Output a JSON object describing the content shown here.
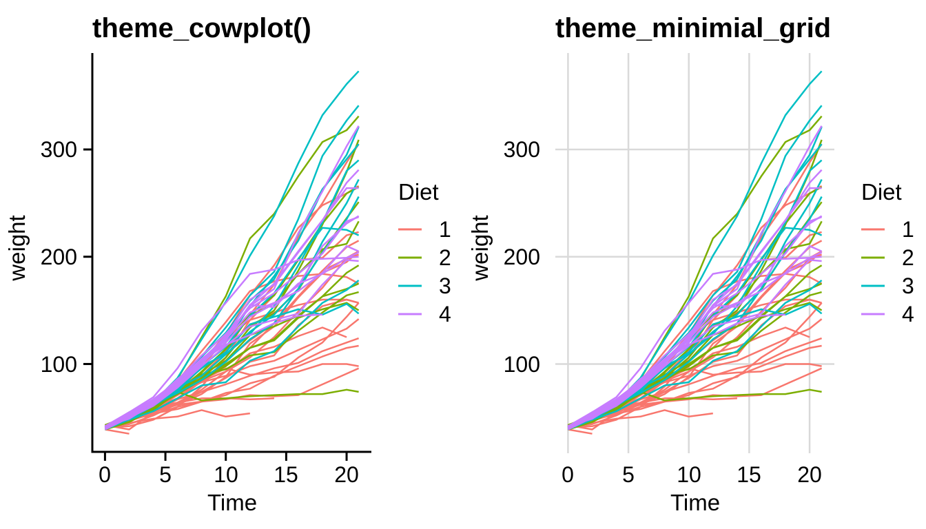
{
  "figure": {
    "background": "#ffffff"
  },
  "chart_data": {
    "type": "line",
    "x_label": "Time",
    "y_label": "weight",
    "x_ticks": [
      0,
      5,
      10,
      15,
      20
    ],
    "y_ticks": [
      100,
      200,
      300
    ],
    "x_values": [
      0,
      2,
      4,
      6,
      8,
      10,
      12,
      14,
      16,
      18,
      20,
      21
    ],
    "x_range": [
      0,
      21
    ],
    "y_range": [
      35,
      373
    ],
    "legend_title": "Diet",
    "legend_position": "right",
    "panels": [
      {
        "title": "theme_cowplot()",
        "grid": false,
        "axis_lines": true,
        "axis_ticks": true
      },
      {
        "title": "theme_minimial_grid",
        "grid": true,
        "axis_lines": false,
        "axis_ticks": false
      }
    ],
    "colors": {
      "axis": "#000000",
      "grid": "#d9d9d9",
      "text": "#000000",
      "background": "#ffffff"
    },
    "line_width": 2.5,
    "series": [
      {
        "name": "1",
        "color": "#F8766D",
        "lines": [
          [
            42,
            51,
            59,
            64,
            76,
            93,
            106,
            125,
            149,
            171,
            199,
            205
          ],
          [
            40,
            49,
            58,
            72,
            84,
            103,
            122,
            138,
            162,
            187,
            209,
            215
          ],
          [
            43,
            39,
            55,
            67,
            84,
            99,
            115,
            138,
            163,
            187,
            198,
            202
          ],
          [
            42,
            49,
            56,
            67,
            74,
            87,
            102,
            108,
            136,
            154,
            160,
            157
          ],
          [
            41,
            42,
            48,
            60,
            79,
            106,
            141,
            164,
            197,
            199,
            220,
            223
          ],
          [
            41,
            49,
            59,
            74,
            97,
            124,
            141,
            148,
            155,
            160,
            160,
            157
          ],
          [
            41,
            49,
            57,
            71,
            89,
            112,
            146,
            174,
            218,
            250,
            288,
            305
          ],
          [
            42,
            50,
            61,
            71,
            84,
            93,
            110,
            116,
            126,
            134,
            125
          ],
          [
            42,
            51,
            59,
            68,
            85,
            96,
            90,
            92,
            93,
            100,
            100,
            98
          ],
          [
            41,
            44,
            52,
            63,
            74,
            81,
            89,
            96,
            101,
            112,
            120,
            124
          ],
          [
            43,
            51,
            63,
            84,
            112,
            139,
            168,
            177,
            182,
            184,
            181,
            175
          ],
          [
            41,
            49,
            56,
            62,
            72,
            88,
            119,
            135,
            162,
            185,
            195,
            205
          ],
          [
            41,
            48,
            53,
            60,
            65,
            67,
            71,
            70,
            71,
            81,
            91,
            96
          ],
          [
            41,
            49,
            62,
            79,
            101,
            128,
            164,
            192,
            227,
            248,
            259,
            266
          ],
          [
            41,
            49,
            56,
            64,
            68,
            68,
            67,
            68
          ],
          [
            41,
            45,
            49,
            51,
            57,
            51,
            54
          ],
          [
            42,
            51,
            61,
            72,
            83,
            89,
            98,
            103,
            113,
            123,
            133,
            142
          ],
          [
            39,
            35
          ],
          [
            43,
            48,
            55,
            62,
            65,
            71,
            82,
            88,
            106,
            120,
            144,
            157
          ],
          [
            41,
            47,
            54,
            58,
            65,
            73,
            77,
            89,
            98,
            107,
            115,
            117
          ]
        ]
      },
      {
        "name": "2",
        "color": "#7CAE00",
        "lines": [
          [
            40,
            50,
            62,
            86,
            125,
            163,
            217,
            240,
            275,
            307,
            318,
            331
          ],
          [
            41,
            55,
            64,
            77,
            90,
            95,
            108,
            111,
            131,
            148,
            164,
            167
          ],
          [
            43,
            52,
            61,
            73,
            90,
            103,
            127,
            135,
            145,
            163,
            170,
            175
          ],
          [
            42,
            52,
            58,
            74,
            66,
            68,
            70,
            71,
            72,
            72,
            76,
            74
          ],
          [
            40,
            49,
            62,
            78,
            102,
            124,
            146,
            164,
            197,
            231,
            259,
            265
          ],
          [
            42,
            48,
            57,
            74,
            93,
            114,
            136,
            147,
            169,
            205,
            236,
            251
          ],
          [
            39,
            46,
            58,
            73,
            87,
            100,
            115,
            123,
            144,
            163,
            185,
            192
          ],
          [
            39,
            46,
            58,
            73,
            92,
            114,
            145,
            156,
            184,
            207,
            212,
            233
          ],
          [
            39,
            48,
            59,
            74,
            87,
            106,
            134,
            150,
            187,
            230,
            279,
            309
          ],
          [
            42,
            48,
            59,
            72,
            85,
            98,
            115,
            122,
            143,
            151,
            157,
            150
          ]
        ]
      },
      {
        "name": "3",
        "color": "#00BFC4",
        "lines": [
          [
            42,
            53,
            62,
            73,
            85,
            102,
            123,
            138,
            170,
            204,
            235,
            256
          ],
          [
            41,
            49,
            65,
            82,
            107,
            129,
            159,
            179,
            221,
            263,
            291,
            305
          ],
          [
            39,
            50,
            63,
            77,
            96,
            111,
            137,
            144,
            151,
            146,
            156,
            147
          ],
          [
            41,
            49,
            63,
            85,
            107,
            134,
            164,
            186,
            235,
            294,
            327,
            341
          ],
          [
            41,
            53,
            64,
            87,
            123,
            158,
            201,
            238,
            287,
            332,
            361,
            373
          ],
          [
            39,
            48,
            61,
            76,
            98,
            116,
            145,
            166,
            198,
            227,
            225,
            220
          ],
          [
            41,
            48,
            56,
            68,
            80,
            83,
            103,
            112,
            135,
            157,
            169,
            178
          ],
          [
            41,
            49,
            61,
            74,
            98,
            109,
            128,
            154,
            192,
            232,
            280,
            290
          ],
          [
            42,
            50,
            61,
            78,
            89,
            109,
            130,
            146,
            170,
            214,
            250,
            272
          ],
          [
            41,
            55,
            66,
            79,
            101,
            120,
            154,
            182,
            215,
            262,
            295,
            321
          ]
        ]
      },
      {
        "name": "4",
        "color": "#C77CFF",
        "lines": [
          [
            42,
            51,
            66,
            85,
            103,
            124,
            155,
            153,
            175,
            184,
            199,
            204
          ],
          [
            42,
            49,
            63,
            84,
            103,
            126,
            160,
            174,
            204,
            234,
            269,
            281
          ],
          [
            42,
            55,
            69,
            96,
            131,
            157,
            184,
            188,
            197,
            198,
            199,
            200
          ],
          [
            42,
            51,
            65,
            86,
            103,
            118,
            127,
            138,
            145,
            146
          ],
          [
            41,
            50,
            61,
            78,
            98,
            117,
            135,
            141,
            147,
            174,
            197,
            196
          ],
          [
            40,
            52,
            62,
            82,
            101,
            120,
            144,
            156,
            173,
            210,
            231,
            238
          ],
          [
            41,
            53,
            66,
            79,
            100,
            123,
            148,
            157,
            168,
            185,
            210,
            205
          ],
          [
            39,
            50,
            62,
            80,
            104,
            125,
            154,
            170,
            222,
            261,
            303,
            322
          ],
          [
            40,
            53,
            64,
            85,
            108,
            128,
            152,
            166,
            184,
            203,
            233,
            237
          ],
          [
            41,
            54,
            67,
            84,
            105,
            122,
            155,
            175,
            205,
            234,
            264,
            264
          ]
        ]
      }
    ]
  }
}
